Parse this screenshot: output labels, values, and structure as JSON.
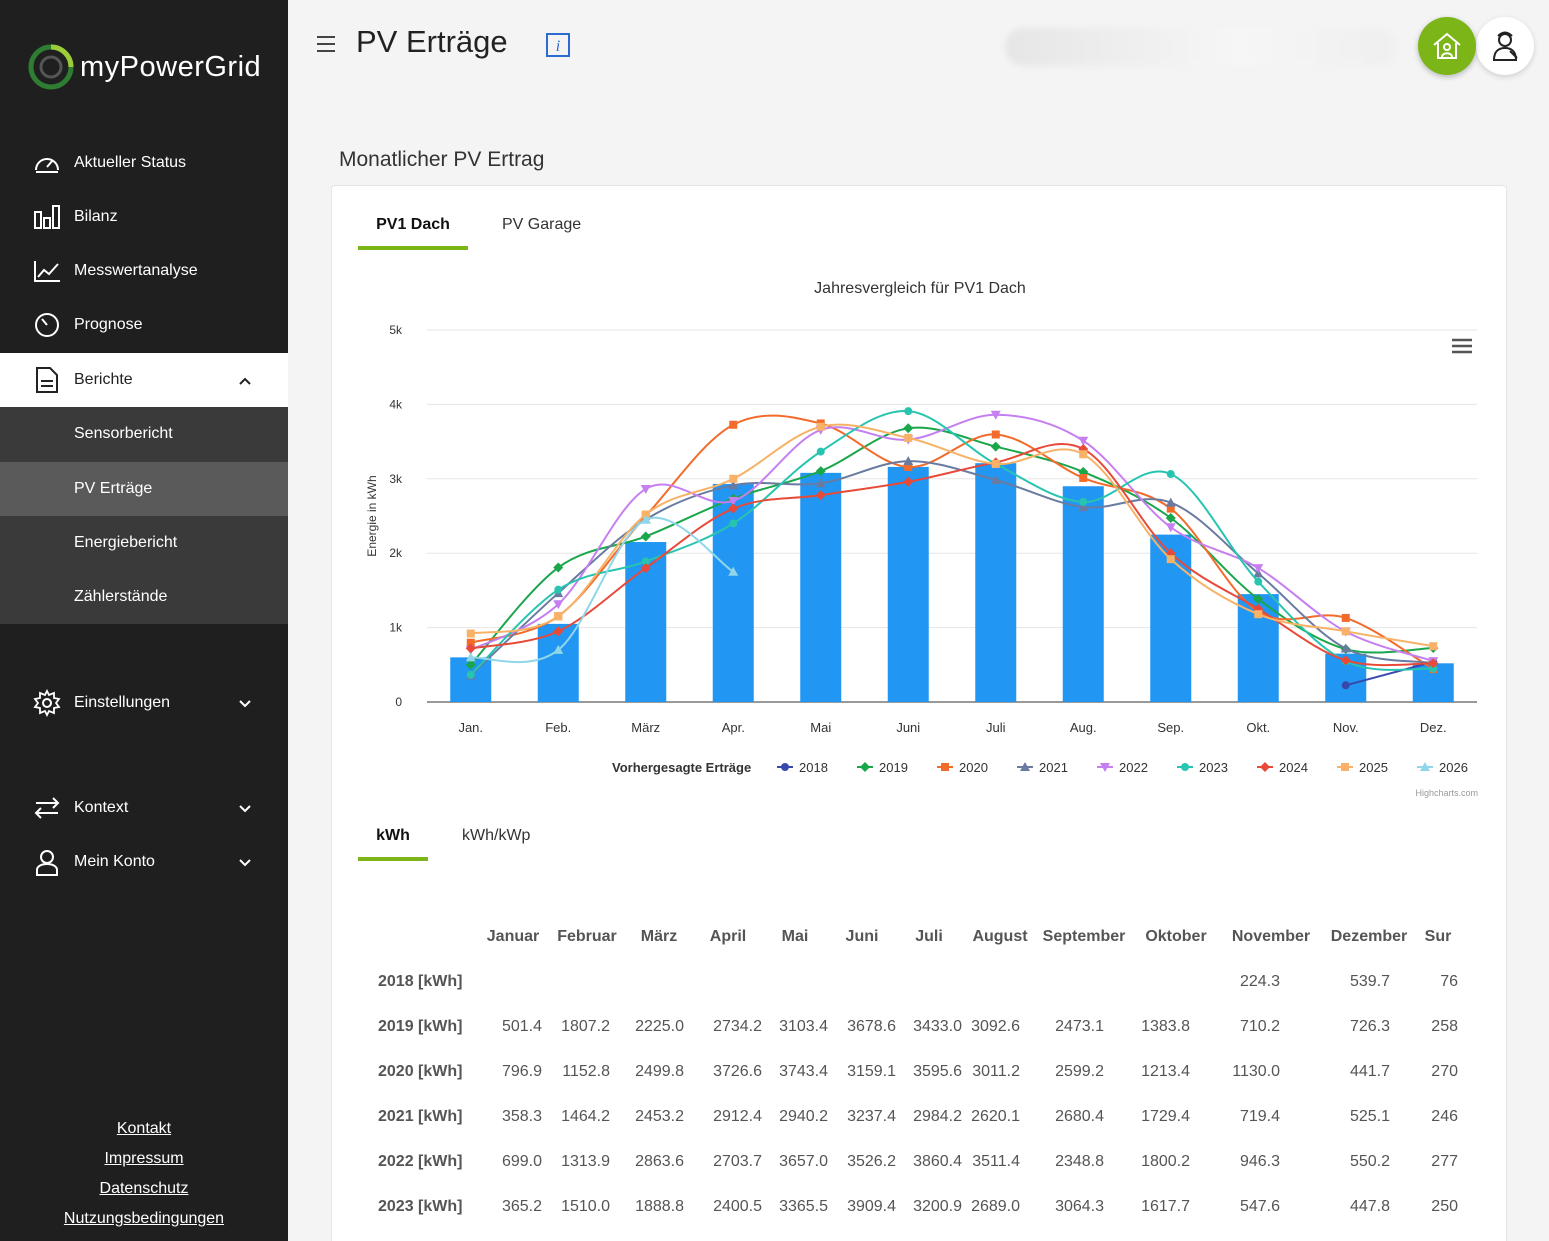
{
  "app": {
    "name": "myPowerGrid",
    "title": "PV Erträge"
  },
  "colors": {
    "accent": "#7cb518",
    "sidebar": "#1f1f1f",
    "bar": "#2196f3"
  },
  "nav": {
    "items": [
      {
        "label": "Aktueller Status",
        "icon": "gauge-icon"
      },
      {
        "label": "Bilanz",
        "icon": "bar-chart-icon"
      },
      {
        "label": "Messwertanalyse",
        "icon": "line-chart-icon"
      },
      {
        "label": "Prognose",
        "icon": "timer-icon"
      },
      {
        "label": "Berichte",
        "icon": "document-icon"
      }
    ],
    "sub_items": [
      {
        "label": "Sensorbericht"
      },
      {
        "label": "PV Erträge"
      },
      {
        "label": "Energiebericht"
      },
      {
        "label": "Zählerstände"
      }
    ],
    "lower_items": [
      {
        "label": "Einstellungen",
        "icon": "gear-icon"
      },
      {
        "label": "Kontext",
        "icon": "swap-icon"
      },
      {
        "label": "Mein Konto",
        "icon": "user-icon"
      }
    ],
    "footer": [
      "Kontakt",
      "Impressum",
      "Datenschutz",
      "Nutzungsbedingungen"
    ]
  },
  "section": {
    "title": "Monatlicher PV Ertrag"
  },
  "tabs": {
    "pv1": "PV1 Dach",
    "garage": "PV Garage"
  },
  "unit_tabs": {
    "kwh": "kWh",
    "kwhkwp": "kWh/kWp"
  },
  "chart_data": {
    "type": "bar",
    "title": "Jahresvergleich für PV1 Dach",
    "ylabel": "Energie in kWh",
    "xlabel": "",
    "categories": [
      "Jan.",
      "Feb.",
      "März",
      "Apr.",
      "Mai",
      "Juni",
      "Juli",
      "Aug.",
      "Sep.",
      "Okt.",
      "Nov.",
      "Dez."
    ],
    "y_ticks": [
      "0",
      "1k",
      "2k",
      "3k",
      "4k",
      "5k"
    ],
    "ylim": [
      0,
      5000
    ],
    "grid": true,
    "legend_position": "bottom",
    "credit": "Highcharts.com",
    "bar_series": {
      "name": "Vorhergesagte Erträge",
      "values": [
        600,
        1050,
        2150,
        2930,
        3080,
        3160,
        3210,
        2900,
        2250,
        1450,
        650,
        520
      ]
    },
    "series": [
      {
        "name": "2018",
        "color": "#3949ab",
        "values": [
          null,
          null,
          null,
          null,
          null,
          null,
          null,
          null,
          null,
          null,
          224.3,
          539.7
        ]
      },
      {
        "name": "2019",
        "color": "#1aa64b",
        "values": [
          501.4,
          1807.2,
          2225.0,
          2734.2,
          3103.4,
          3678.6,
          3433.0,
          3092.6,
          2473.1,
          1383.8,
          710.2,
          726.3
        ]
      },
      {
        "name": "2020",
        "color": "#f26b2b",
        "values": [
          796.9,
          1152.8,
          2499.8,
          3726.6,
          3743.4,
          3159.1,
          3595.6,
          3011.2,
          2599.2,
          1213.4,
          1130.0,
          441.7
        ]
      },
      {
        "name": "2021",
        "color": "#6a7ba2",
        "values": [
          358.3,
          1464.2,
          2453.2,
          2912.4,
          2940.2,
          3237.4,
          2984.2,
          2620.1,
          2680.4,
          1729.4,
          719.4,
          525.1
        ]
      },
      {
        "name": "2022",
        "color": "#c67ff0",
        "values": [
          699.0,
          1313.9,
          2863.6,
          2703.7,
          3657.0,
          3526.2,
          3860.4,
          3511.4,
          2348.8,
          1800.2,
          946.3,
          550.2
        ]
      },
      {
        "name": "2023",
        "color": "#27c4b0",
        "values": [
          365.2,
          1510.0,
          1888.8,
          2400.5,
          3365.5,
          3909.4,
          3200.9,
          2689.0,
          3064.3,
          1617.7,
          547.6,
          447.8
        ]
      },
      {
        "name": "2024",
        "color": "#e84a3a",
        "values": [
          720,
          950,
          1800,
          2600,
          2780,
          2960,
          3220,
          3400,
          2000,
          1250,
          560,
          520
        ]
      },
      {
        "name": "2025",
        "color": "#f7b267",
        "values": [
          920,
          1150,
          2520,
          3000,
          3700,
          3550,
          3200,
          3330,
          1920,
          1180,
          950,
          750
        ]
      },
      {
        "name": "2026",
        "color": "#8fd6ea",
        "values": [
          600,
          700,
          2450,
          1750,
          null,
          null,
          null,
          null,
          null,
          null,
          null,
          null
        ]
      }
    ]
  },
  "table": {
    "headers": [
      "Januar",
      "Februar",
      "März",
      "April",
      "Mai",
      "Juni",
      "Juli",
      "August",
      "September",
      "Oktober",
      "November",
      "Dezember",
      "Sur"
    ],
    "rows": [
      {
        "label": "2018 [kWh]",
        "cells": [
          "",
          "",
          "",
          "",
          "",
          "",
          "",
          "",
          "",
          "",
          "224.3",
          "539.7",
          "76"
        ]
      },
      {
        "label": "2019 [kWh]",
        "cells": [
          "501.4",
          "1807.2",
          "2225.0",
          "2734.2",
          "3103.4",
          "3678.6",
          "3433.0",
          "3092.6",
          "2473.1",
          "1383.8",
          "710.2",
          "726.3",
          "258"
        ]
      },
      {
        "label": "2020 [kWh]",
        "cells": [
          "796.9",
          "1152.8",
          "2499.8",
          "3726.6",
          "3743.4",
          "3159.1",
          "3595.6",
          "3011.2",
          "2599.2",
          "1213.4",
          "1130.0",
          "441.7",
          "270"
        ]
      },
      {
        "label": "2021 [kWh]",
        "cells": [
          "358.3",
          "1464.2",
          "2453.2",
          "2912.4",
          "2940.2",
          "3237.4",
          "2984.2",
          "2620.1",
          "2680.4",
          "1729.4",
          "719.4",
          "525.1",
          "246"
        ]
      },
      {
        "label": "2022 [kWh]",
        "cells": [
          "699.0",
          "1313.9",
          "2863.6",
          "2703.7",
          "3657.0",
          "3526.2",
          "3860.4",
          "3511.4",
          "2348.8",
          "1800.2",
          "946.3",
          "550.2",
          "277"
        ]
      },
      {
        "label": "2023 [kWh]",
        "cells": [
          "365.2",
          "1510.0",
          "1888.8",
          "2400.5",
          "3365.5",
          "3909.4",
          "3200.9",
          "2689.0",
          "3064.3",
          "1617.7",
          "547.6",
          "447.8",
          "250"
        ]
      }
    ]
  }
}
